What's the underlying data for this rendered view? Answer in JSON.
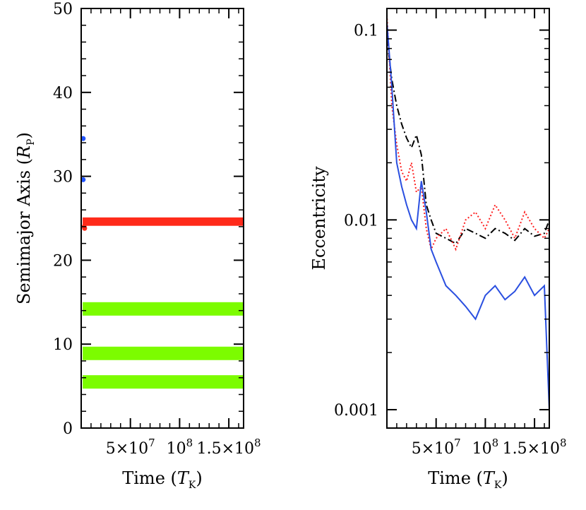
{
  "chart_data": [
    {
      "type": "scatter",
      "title": "",
      "xlabel": "Time (T_K)",
      "ylabel": "Semimajor Axis (R_P)",
      "xlabel_parts": {
        "text": "Time (",
        "sym": "T",
        "sub": "K",
        "end": ")"
      },
      "ylabel_parts": {
        "text": "Semimajor Axis (",
        "sym": "R",
        "sub": "P",
        "end": ")"
      },
      "xlim": [
        0,
        165000000
      ],
      "ylim": [
        0,
        50
      ],
      "xticks": [
        {
          "value": 50000000,
          "label": "5×10",
          "exp": "7"
        },
        {
          "value": 100000000,
          "label": "10",
          "exp": "8"
        },
        {
          "value": 150000000,
          "label": "1.5×10",
          "exp": "8"
        }
      ],
      "yticks": [
        {
          "value": 0,
          "label": "0"
        },
        {
          "value": 10,
          "label": "10"
        },
        {
          "value": 20,
          "label": "20"
        },
        {
          "value": 30,
          "label": "30"
        },
        {
          "value": 40,
          "label": "40"
        },
        {
          "value": 50,
          "label": "50"
        }
      ],
      "series": [
        {
          "color": "#ff2a1a",
          "x_range": [
            1500000,
            165000000
          ],
          "y": 24.6,
          "band": 0.5
        },
        {
          "color": "#7cfc00",
          "x_range": [
            1500000,
            165000000
          ],
          "y": 14.2,
          "band": 0.8
        },
        {
          "color": "#7cfc00",
          "x_range": [
            1500000,
            165000000
          ],
          "y": 8.9,
          "band": 0.8
        },
        {
          "color": "#7cfc00",
          "x_range": [
            1500000,
            165000000
          ],
          "y": 5.5,
          "band": 0.8
        },
        {
          "color": "#2255ff",
          "points": [
            [
              2000000,
              34.5
            ],
            [
              2000000,
              29.6
            ]
          ]
        },
        {
          "color": "#ff2a1a",
          "points": [
            [
              3000000,
              24.0
            ],
            [
              3500000,
              23.8
            ]
          ]
        }
      ]
    },
    {
      "type": "line",
      "title": "",
      "xlabel": "Time (T_K)",
      "ylabel": "Eccentricity",
      "xlabel_parts": {
        "text": "Time (",
        "sym": "T",
        "sub": "K",
        "end": ")"
      },
      "yscale": "log",
      "xlim": [
        0,
        165000000
      ],
      "ylim": [
        0.0008,
        0.13
      ],
      "xticks": [
        {
          "value": 50000000,
          "label": "5×10",
          "exp": "7"
        },
        {
          "value": 100000000,
          "label": "10",
          "exp": "8"
        },
        {
          "value": 150000000,
          "label": "1.5×10",
          "exp": "8"
        }
      ],
      "yticks": [
        {
          "value": 0.001,
          "label": "0.001"
        },
        {
          "value": 0.01,
          "label": "0.01"
        },
        {
          "value": 0.1,
          "label": "0.1"
        }
      ],
      "series": [
        {
          "color": "#000000",
          "dash": "10,4,2,4",
          "x": [
            0,
            5000000,
            10000000,
            15000000,
            20000000,
            25000000,
            30000000,
            35000000,
            40000000,
            45000000,
            50000000,
            60000000,
            70000000,
            80000000,
            90000000,
            100000000,
            110000000,
            120000000,
            130000000,
            140000000,
            150000000,
            160000000,
            165000000
          ],
          "y": [
            0.09,
            0.055,
            0.04,
            0.032,
            0.027,
            0.024,
            0.028,
            0.022,
            0.012,
            0.01,
            0.0085,
            0.008,
            0.0075,
            0.009,
            0.0085,
            0.008,
            0.009,
            0.0085,
            0.0078,
            0.009,
            0.0082,
            0.0085,
            0.01
          ]
        },
        {
          "color": "#ff2020",
          "dash": "2,3",
          "x": [
            0,
            5000000,
            10000000,
            15000000,
            20000000,
            25000000,
            30000000,
            35000000,
            40000000,
            45000000,
            50000000,
            60000000,
            70000000,
            80000000,
            90000000,
            100000000,
            110000000,
            120000000,
            130000000,
            140000000,
            150000000,
            160000000,
            165000000
          ],
          "y": [
            0.12,
            0.04,
            0.025,
            0.018,
            0.016,
            0.02,
            0.014,
            0.015,
            0.009,
            0.007,
            0.008,
            0.009,
            0.007,
            0.01,
            0.011,
            0.009,
            0.012,
            0.01,
            0.008,
            0.011,
            0.009,
            0.008,
            0.009
          ]
        },
        {
          "color": "#2a4fe0",
          "dash": "",
          "x": [
            0,
            5000000,
            10000000,
            15000000,
            20000000,
            25000000,
            30000000,
            35000000,
            40000000,
            45000000,
            50000000,
            60000000,
            70000000,
            80000000,
            90000000,
            100000000,
            110000000,
            120000000,
            130000000,
            140000000,
            150000000,
            160000000,
            165000000
          ],
          "y": [
            0.11,
            0.05,
            0.02,
            0.015,
            0.012,
            0.01,
            0.009,
            0.016,
            0.011,
            0.007,
            0.006,
            0.0045,
            0.004,
            0.0035,
            0.003,
            0.004,
            0.0045,
            0.0038,
            0.0042,
            0.005,
            0.004,
            0.0045,
            0.001
          ]
        }
      ]
    }
  ]
}
